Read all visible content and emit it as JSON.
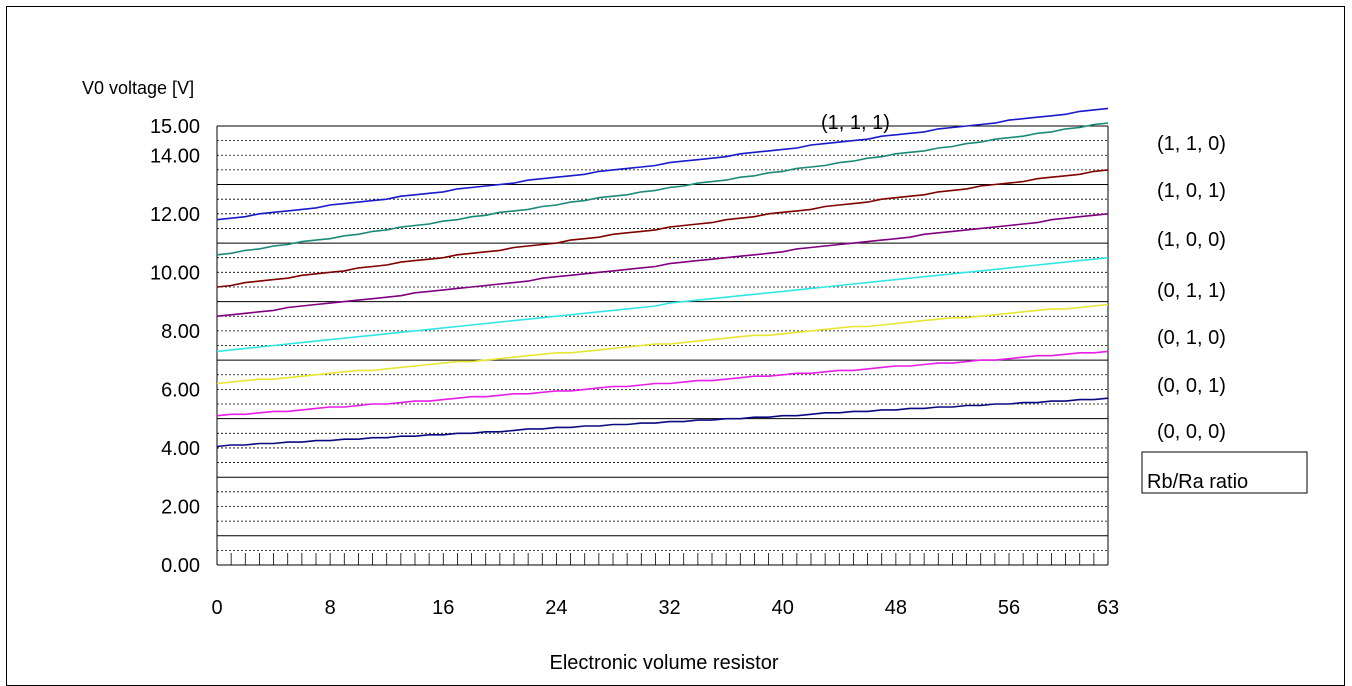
{
  "chart_data": {
    "type": "line",
    "ylabel": "V0 voltage [V]",
    "xlabel": "Electronic volume resistor",
    "x_ticks": [
      "0",
      "8",
      "16",
      "24",
      "32",
      "40",
      "48",
      "56",
      "63"
    ],
    "x_tick_values": [
      0,
      8,
      16,
      24,
      32,
      40,
      48,
      56,
      63
    ],
    "y_ticks": [
      "0.00",
      "2.00",
      "4.00",
      "6.00",
      "8.00",
      "10.00",
      "12.00",
      "14.00",
      "15.00"
    ],
    "y_tick_values": [
      0,
      2,
      4,
      6,
      8,
      10,
      12,
      14,
      15
    ],
    "xlim": [
      0,
      63
    ],
    "ylim": [
      0,
      15
    ],
    "legend_title": "Rb/Ra ratio",
    "series": [
      {
        "name": "(1, 1, 1)",
        "color": "#1a1acc",
        "start": 11.8,
        "end": 15.6
      },
      {
        "name": "(1, 1, 0)",
        "color": "#1b8a7a",
        "start": 10.6,
        "end": 15.1
      },
      {
        "name": "(1, 0, 1)",
        "color": "#800000",
        "start": 9.5,
        "end": 13.5
      },
      {
        "name": "(1, 0, 0)",
        "color": "#800080",
        "start": 8.5,
        "end": 12.0
      },
      {
        "name": "(0, 1, 1)",
        "color": "#33e6e6",
        "start": 7.3,
        "end": 10.5
      },
      {
        "name": "(0, 1, 0)",
        "color": "#e6e633",
        "start": 6.2,
        "end": 8.9
      },
      {
        "name": "(0, 0, 1)",
        "color": "#e61ee6",
        "start": 5.1,
        "end": 7.3
      },
      {
        "name": "(0, 0, 0)",
        "color": "#0a0a80",
        "start": 4.05,
        "end": 5.7
      }
    ]
  }
}
